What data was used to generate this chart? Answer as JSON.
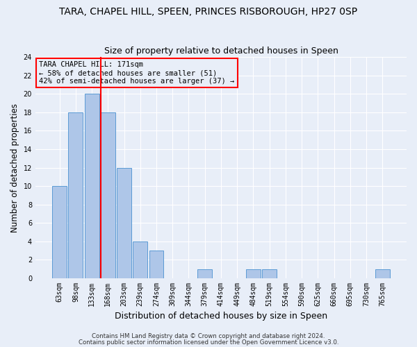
{
  "title": "TARA, CHAPEL HILL, SPEEN, PRINCES RISBOROUGH, HP27 0SP",
  "subtitle": "Size of property relative to detached houses in Speen",
  "xlabel": "Distribution of detached houses by size in Speen",
  "ylabel": "Number of detached properties",
  "categories": [
    "63sqm",
    "98sqm",
    "133sqm",
    "168sqm",
    "203sqm",
    "239sqm",
    "274sqm",
    "309sqm",
    "344sqm",
    "379sqm",
    "414sqm",
    "449sqm",
    "484sqm",
    "519sqm",
    "554sqm",
    "590sqm",
    "625sqm",
    "660sqm",
    "695sqm",
    "730sqm",
    "765sqm"
  ],
  "values": [
    10,
    18,
    20,
    18,
    12,
    4,
    3,
    0,
    0,
    1,
    0,
    0,
    1,
    1,
    0,
    0,
    0,
    0,
    0,
    0,
    1
  ],
  "bar_color": "#aec6e8",
  "bar_edge_color": "#5b9bd5",
  "vline_x": 2.55,
  "vline_color": "red",
  "ylim": [
    0,
    24
  ],
  "yticks": [
    0,
    2,
    4,
    6,
    8,
    10,
    12,
    14,
    16,
    18,
    20,
    22,
    24
  ],
  "annotation_text": "TARA CHAPEL HILL: 171sqm\n← 58% of detached houses are smaller (51)\n42% of semi-detached houses are larger (37) →",
  "footer_line1": "Contains HM Land Registry data © Crown copyright and database right 2024.",
  "footer_line2": "Contains public sector information licensed under the Open Government Licence v3.0.",
  "bg_color": "#e8eef8",
  "grid_color": "#ffffff",
  "title_fontsize": 10,
  "subtitle_fontsize": 9,
  "tick_fontsize": 7,
  "ylabel_fontsize": 8.5,
  "xlabel_fontsize": 9
}
